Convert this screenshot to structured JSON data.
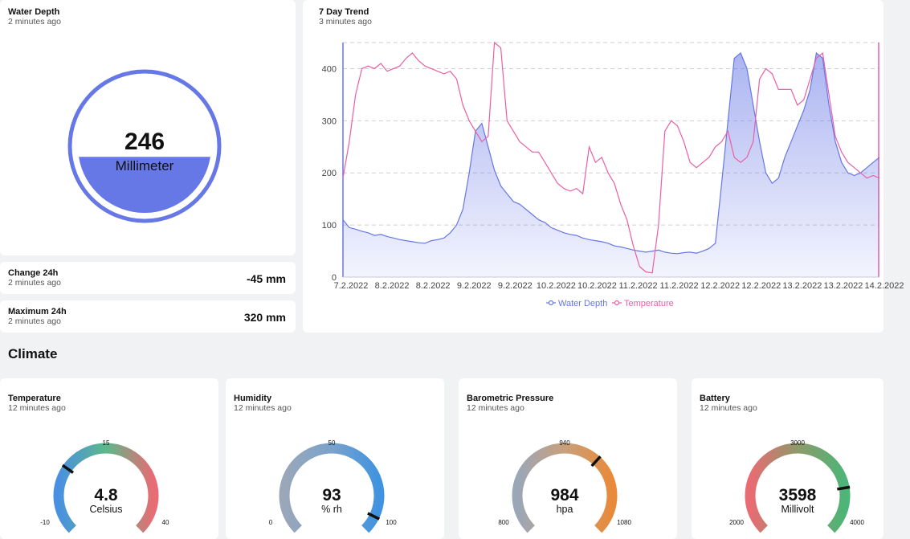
{
  "water_depth": {
    "title": "Water Depth",
    "updated": "2 minutes ago",
    "value": "246",
    "unit": "Millimeter",
    "fill_fraction": 0.42,
    "accent": "#6677e6"
  },
  "stats": [
    {
      "title": "Change 24h",
      "updated": "2 minutes ago",
      "value": "-45 mm"
    },
    {
      "title": "Maximum 24h",
      "updated": "2 minutes ago",
      "value": "320 mm"
    }
  ],
  "trend": {
    "title": "7 Day Trend",
    "updated": "3 minutes ago"
  },
  "chart_data": {
    "type": "line",
    "title": "7 Day Trend",
    "x_ticks": [
      "7.2.2022",
      "8.2.2022",
      "8.2.2022",
      "9.2.2022",
      "9.2.2022",
      "10.2.2022",
      "10.2.2022",
      "11.2.2022",
      "11.2.2022",
      "12.2.2022",
      "12.2.2022",
      "13.2.2022",
      "13.2.2022",
      "14.2.2022"
    ],
    "y_ticks": [
      "0",
      "100",
      "200",
      "300",
      "400"
    ],
    "ylim": [
      0,
      450
    ],
    "grid": true,
    "legend_position": "bottom",
    "series": [
      {
        "name": "Water Depth",
        "color": "#6677e6",
        "fill": "area",
        "values": [
          110,
          95,
          92,
          88,
          85,
          80,
          82,
          78,
          75,
          72,
          70,
          68,
          66,
          65,
          70,
          72,
          75,
          85,
          100,
          130,
          200,
          280,
          295,
          250,
          205,
          175,
          160,
          145,
          140,
          130,
          120,
          110,
          105,
          95,
          90,
          85,
          82,
          80,
          75,
          72,
          70,
          68,
          65,
          60,
          58,
          55,
          52,
          50,
          48,
          50,
          52,
          48,
          46,
          45,
          47,
          48,
          46,
          50,
          55,
          65,
          180,
          300,
          420,
          430,
          400,
          330,
          260,
          200,
          180,
          190,
          230,
          260,
          290,
          320,
          360,
          430,
          420,
          330,
          260,
          220,
          200,
          195,
          200,
          210,
          220,
          230
        ]
      },
      {
        "name": "Temperature",
        "color": "#ea5fa5",
        "fill": "none",
        "values": [
          190,
          260,
          350,
          400,
          405,
          400,
          410,
          395,
          400,
          405,
          420,
          430,
          415,
          405,
          400,
          395,
          390,
          395,
          380,
          330,
          300,
          280,
          260,
          270,
          450,
          440,
          300,
          280,
          260,
          250,
          240,
          240,
          220,
          200,
          180,
          170,
          165,
          170,
          160,
          250,
          220,
          230,
          200,
          180,
          140,
          110,
          60,
          20,
          10,
          8,
          100,
          280,
          300,
          290,
          260,
          220,
          210,
          220,
          230,
          250,
          260,
          280,
          230,
          220,
          230,
          260,
          380,
          400,
          390,
          360,
          360,
          360,
          330,
          340,
          380,
          420,
          430,
          350,
          270,
          240,
          220,
          210,
          200,
          190,
          195,
          190
        ]
      }
    ]
  },
  "climate": {
    "section_title": "Climate",
    "gauges": [
      {
        "title": "Temperature",
        "updated": "12 minutes ago",
        "value": "4.8",
        "unit": "Celsius",
        "min": "-10",
        "mid": "15",
        "max": "40",
        "fraction": 0.296,
        "colors": [
          "#4a90e2",
          "#5cb88a",
          "#e96b73"
        ]
      },
      {
        "title": "Humidity",
        "updated": "12 minutes ago",
        "value": "93",
        "unit": "% rh",
        "min": "0",
        "mid": "50",
        "max": "100",
        "fraction": 0.93,
        "colors": [
          "#9aa7b8",
          "#7aa2cc",
          "#3f93e0"
        ]
      },
      {
        "title": "Barometric Pressure",
        "updated": "12 minutes ago",
        "value": "984",
        "unit": "hpa",
        "min": "800",
        "mid": "940",
        "max": "1080",
        "fraction": 0.657,
        "colors": [
          "#9aa7b8",
          "#c9a07a",
          "#e88a3a"
        ]
      },
      {
        "title": "Battery",
        "updated": "12 minutes ago",
        "value": "3598",
        "unit": "Millivolt",
        "min": "2000",
        "mid": "3000",
        "max": "4000",
        "fraction": 0.799,
        "colors": [
          "#e96b73",
          "#8e9a6a",
          "#4cb577"
        ]
      }
    ]
  }
}
